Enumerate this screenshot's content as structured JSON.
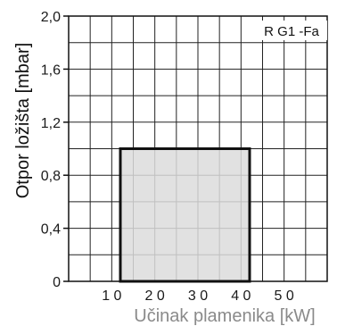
{
  "chart_data": {
    "type": "area",
    "title": "",
    "xlabel": "Učinak plamenika [kW]",
    "ylabel": "Otpor ložišta [mbar]",
    "xlim": [
      0,
      60
    ],
    "ylim": [
      0,
      2.0
    ],
    "x_ticks": [
      10,
      20,
      30,
      40,
      50
    ],
    "x_tick_labels": [
      "1 0",
      "2 0",
      "3 0",
      "4 0",
      "5 0"
    ],
    "y_ticks": [
      0,
      0.4,
      0.8,
      1.2,
      1.6,
      2.0
    ],
    "y_tick_labels": [
      "0",
      "0,4",
      "0,8",
      "1,2",
      "1,6",
      "2,0"
    ],
    "grid": true,
    "grid_x_step": 5,
    "grid_y_step": 0.2,
    "annotation": "R G1 -Fa",
    "region": {
      "x": [
        12,
        42
      ],
      "y": [
        0,
        1.0
      ],
      "fill": "#dcdcdc",
      "stroke": "#111111"
    }
  }
}
